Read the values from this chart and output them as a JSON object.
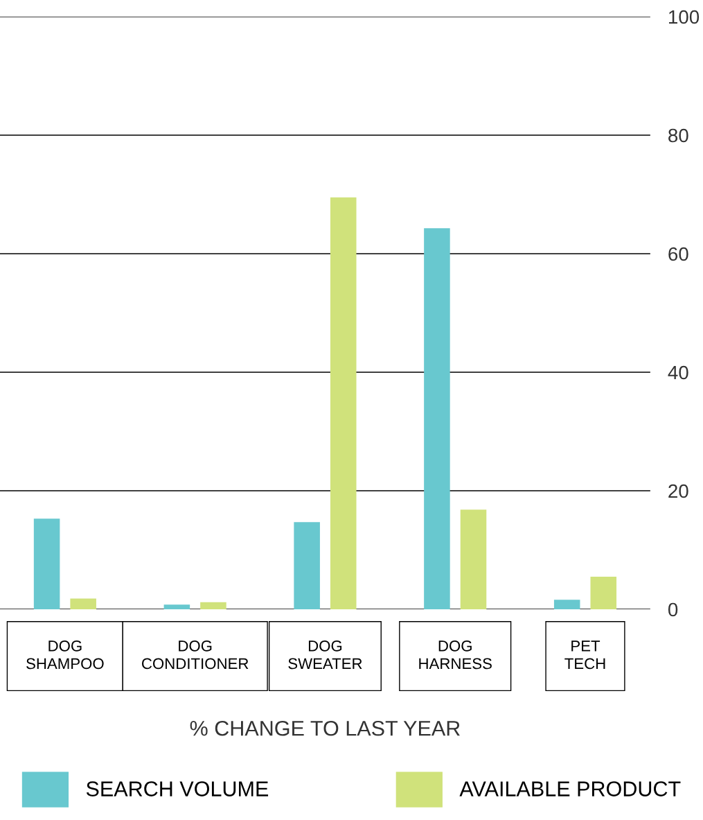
{
  "chart_data": {
    "type": "bar",
    "categories": [
      "DOG\nSHAMPOO",
      "DOG\nCONDITIONER",
      "DOG\nSWEATER",
      "DOG\nHARNESS",
      "PET\nTECH"
    ],
    "series": [
      {
        "name": "SEARCH VOLUME",
        "color": "#68c8cf",
        "values": [
          15.3,
          0.8,
          14.7,
          64.3,
          1.6
        ]
      },
      {
        "name": "AVAILABLE PRODUCT",
        "color": "#d0e27b",
        "values": [
          1.8,
          1.2,
          69.5,
          16.8,
          5.5
        ]
      }
    ],
    "xlabel": "% CHANGE TO LAST YEAR",
    "ylim": [
      0,
      100
    ],
    "yticks": [
      0,
      20,
      40,
      60,
      80,
      100
    ],
    "grid": "y",
    "legend": "bottom"
  }
}
